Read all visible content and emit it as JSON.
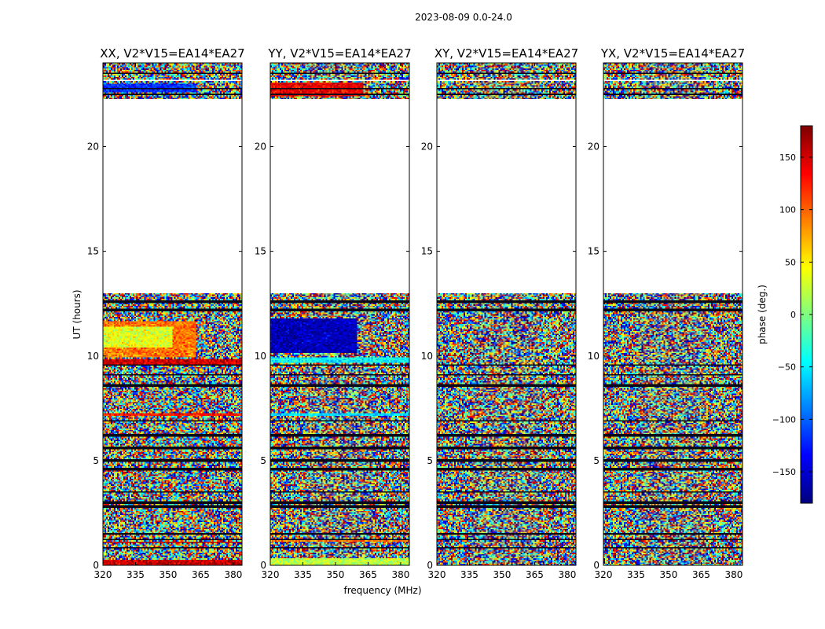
{
  "figure": {
    "title": "2023-08-09 0.0-24.0",
    "xlabel": "frequency (MHz)",
    "ylabel": "UT (hours)"
  },
  "colorbar": {
    "label": "phase (deg.)",
    "range": [
      -180,
      180
    ],
    "ticks": [
      "150",
      "100",
      "50",
      "0",
      "−50",
      "−100",
      "−150"
    ],
    "tick_values": [
      150,
      100,
      50,
      0,
      -50,
      -100,
      -150
    ],
    "colormap": "jet"
  },
  "chart_data": {
    "type": "heatmap",
    "x_ticks": [
      "320",
      "335",
      "350",
      "365",
      "380"
    ],
    "x_tick_values": [
      320,
      335,
      350,
      365,
      380
    ],
    "xlim": [
      320,
      384
    ],
    "y_ticks": [
      "0",
      "5",
      "10",
      "15",
      "20"
    ],
    "y_tick_values": [
      0,
      5,
      10,
      15,
      20
    ],
    "ylim": [
      0,
      24
    ],
    "panels": [
      {
        "title": "XX, V2*V15=EA14*EA27",
        "bands": [
          {
            "t0": 9.6,
            "t1": 9.85,
            "phase": 150,
            "f1": 384
          },
          {
            "t0": 9.9,
            "t1": 11.7,
            "phase": 95,
            "f1": 363
          },
          {
            "t0": 10.4,
            "t1": 11.4,
            "phase": 35,
            "f1": 352
          },
          {
            "t0": 7.1,
            "t1": 7.3,
            "phase": 130,
            "f1": 384
          },
          {
            "t0": 1.05,
            "t1": 1.15,
            "phase": 160,
            "f1": 384
          },
          {
            "t0": 0.0,
            "t1": 0.25,
            "phase": 155,
            "f1": 384
          },
          {
            "t0": 22.6,
            "t1": 23.0,
            "phase": -120,
            "f1": 363
          }
        ]
      },
      {
        "title": "YY, V2*V15=EA14*EA27",
        "bands": [
          {
            "t0": 10.1,
            "t1": 11.8,
            "phase": -160,
            "f1": 360
          },
          {
            "t0": 9.7,
            "t1": 9.95,
            "phase": -45,
            "f1": 384
          },
          {
            "t0": 7.1,
            "t1": 7.3,
            "phase": -60,
            "f1": 384
          },
          {
            "t0": 22.4,
            "t1": 23.1,
            "phase": 140,
            "f1": 363
          },
          {
            "t0": 0.0,
            "t1": 0.3,
            "phase": 20,
            "f1": 384
          },
          {
            "t0": 1.1,
            "t1": 1.2,
            "phase": 90,
            "f1": 384
          }
        ]
      },
      {
        "title": "XY, V2*V15=EA14*EA27",
        "bands": []
      },
      {
        "title": "YX, V2*V15=EA14*EA27",
        "bands": []
      }
    ],
    "data_gaps_hours": [
      [
        13.0,
        22.2
      ],
      [
        23.15,
        23.2
      ],
      [
        22.15,
        22.3
      ]
    ],
    "flagged_rows_hours": [
      12.6,
      12.2,
      9.55,
      9.1,
      8.6,
      6.9,
      6.2,
      5.6,
      5.0,
      4.6,
      3.5,
      3.0,
      2.8,
      1.5,
      1.25,
      0.85,
      23.5,
      22.5,
      22.75
    ]
  }
}
